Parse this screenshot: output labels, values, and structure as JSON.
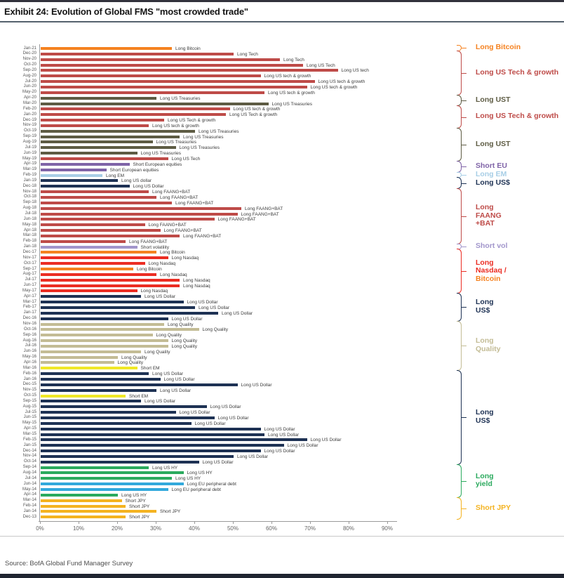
{
  "title": "Exhibit 24: Evolution of Global FMS \"most crowded trade\"",
  "source": "Source: BofA Global Fund Manager Survey",
  "colors": {
    "orange": "#F58220",
    "dark_red": "#BE4B48",
    "olive": "#5E5C44",
    "bright_red": "#EB2D23",
    "purple": "#7F63A7",
    "light_purple": "#A195CB",
    "light_blue": "#A7CEE6",
    "navy": "#1E3254",
    "tan": "#C3BC95",
    "yellow": "#F0E827",
    "green": "#2BAA5E",
    "cyan": "#33A9DC",
    "gold": "#F4B321"
  },
  "chart_data": {
    "type": "bar",
    "orientation": "horizontal",
    "title": "Exhibit 24: Evolution of Global FMS \"most crowded trade\"",
    "xlabel": "",
    "ylabel": "",
    "xlim": [
      0,
      90
    ],
    "grid": false,
    "legend_position": "right",
    "x_ticks": [
      "0%",
      "10%",
      "20%",
      "30%",
      "40%",
      "50%",
      "60%",
      "70%",
      "80%",
      "90%"
    ],
    "rows": [
      {
        "date": "Jan-21",
        "label": "Long Bitcoin",
        "value": 34,
        "color": "orange"
      },
      {
        "date": "Dec-20",
        "label": "Long Tech",
        "value": 50,
        "color": "dark_red"
      },
      {
        "date": "Nov-20",
        "label": "Long Tech",
        "value": 62,
        "color": "dark_red"
      },
      {
        "date": "Oct-20",
        "label": "Long US Tech",
        "value": 68,
        "color": "dark_red"
      },
      {
        "date": "Sep-20",
        "label": "Long US tech",
        "value": 77,
        "color": "dark_red"
      },
      {
        "date": "Aug-20",
        "label": "Long US tech & growth",
        "value": 57,
        "color": "dark_red"
      },
      {
        "date": "Jul-20",
        "label": "Long US tech & growth",
        "value": 71,
        "color": "dark_red"
      },
      {
        "date": "Jun-20",
        "label": "Long US tech & growth",
        "value": 69,
        "color": "dark_red"
      },
      {
        "date": "May-20",
        "label": "Long US tech & growth",
        "value": 58,
        "color": "dark_red"
      },
      {
        "date": "Apr-20",
        "label": "Long US Treasuries",
        "value": 30,
        "color": "olive"
      },
      {
        "date": "Mar-20",
        "label": "Long US Treasuries",
        "value": 59,
        "color": "olive"
      },
      {
        "date": "Feb-20",
        "label": "Long US tech & growth",
        "value": 49,
        "color": "dark_red"
      },
      {
        "date": "Jan-20",
        "label": "Long US Tech & growth",
        "value": 48,
        "color": "dark_red"
      },
      {
        "date": "Dec-19",
        "label": "Long US Tech & growth",
        "value": 32,
        "color": "dark_red"
      },
      {
        "date": "Nov-19",
        "label": "Long US tech & growth",
        "value": 28,
        "color": "dark_red"
      },
      {
        "date": "Oct-19",
        "label": "Long US Treasuries",
        "value": 40,
        "color": "olive"
      },
      {
        "date": "Sep-19",
        "label": "Long US Treasuries",
        "value": 36,
        "color": "olive"
      },
      {
        "date": "Aug-19",
        "label": "Long US Treasuries",
        "value": 29,
        "color": "olive"
      },
      {
        "date": "Jul-19",
        "label": "Long US Treasuries",
        "value": 35,
        "color": "olive"
      },
      {
        "date": "Jun-19",
        "label": "Long US Treasuries",
        "value": 25,
        "color": "olive"
      },
      {
        "date": "May-19",
        "label": "Long US Tech",
        "value": 33,
        "color": "dark_red"
      },
      {
        "date": "Apr-19",
        "label": "Short European equities",
        "value": 23,
        "color": "purple"
      },
      {
        "date": "Mar-19",
        "label": "Short European equities",
        "value": 17,
        "color": "purple"
      },
      {
        "date": "Feb-19",
        "label": "Long EM",
        "value": 16,
        "color": "light_blue"
      },
      {
        "date": "Jan-19",
        "label": "Long US dollar",
        "value": 20,
        "color": "navy"
      },
      {
        "date": "Dec-18",
        "label": "Long US Dollar",
        "value": 23,
        "color": "navy"
      },
      {
        "date": "Nov-18",
        "label": "Long FAANG+BAT",
        "value": 28,
        "color": "dark_red"
      },
      {
        "date": "Oct-18",
        "label": "Long FAANG+BAT",
        "value": 30,
        "color": "dark_red"
      },
      {
        "date": "Sep-18",
        "label": "Long FAANG+BAT",
        "value": 34,
        "color": "dark_red"
      },
      {
        "date": "Aug-18",
        "label": "Long FAANG+BAT",
        "value": 52,
        "color": "dark_red"
      },
      {
        "date": "Jul-18",
        "label": "Long FAANG+BAT",
        "value": 51,
        "color": "dark_red"
      },
      {
        "date": "Jun-18",
        "label": "Long FAANG+BAT",
        "value": 45,
        "color": "dark_red"
      },
      {
        "date": "May-18",
        "label": "Long FAANG+BAT",
        "value": 27,
        "color": "dark_red"
      },
      {
        "date": "Apr-18",
        "label": "Long FAANG+BAT",
        "value": 31,
        "color": "dark_red"
      },
      {
        "date": "Mar-18",
        "label": "Long FAANG+BAT",
        "value": 36,
        "color": "dark_red"
      },
      {
        "date": "Feb-18",
        "label": "Long FAANG+BAT",
        "value": 22,
        "color": "dark_red"
      },
      {
        "date": "Jan-18",
        "label": "Short volatility",
        "value": 25,
        "color": "light_purple"
      },
      {
        "date": "Dec-17",
        "label": "Long Bitcoin",
        "value": 30,
        "color": "orange"
      },
      {
        "date": "Nov-17",
        "label": "Long Nasdaq",
        "value": 33,
        "color": "bright_red"
      },
      {
        "date": "Oct-17",
        "label": "Long Nasdaq",
        "value": 27,
        "color": "bright_red"
      },
      {
        "date": "Sep-17",
        "label": "Long Bitcoin",
        "value": 24,
        "color": "orange"
      },
      {
        "date": "Aug-17",
        "label": "Long Nasdaq",
        "value": 30,
        "color": "bright_red"
      },
      {
        "date": "Jul-17",
        "label": "Long Nasdaq",
        "value": 36,
        "color": "bright_red"
      },
      {
        "date": "Jun-17",
        "label": "Long Nasdaq",
        "value": 36,
        "color": "bright_red"
      },
      {
        "date": "May-17",
        "label": "Long Nasdaq",
        "value": 25,
        "color": "bright_red"
      },
      {
        "date": "Apr-17",
        "label": "Long US Dollar",
        "value": 26,
        "color": "navy"
      },
      {
        "date": "Mar-17",
        "label": "Long US Dollar",
        "value": 37,
        "color": "navy"
      },
      {
        "date": "Feb-17",
        "label": "Long US Dollar",
        "value": 40,
        "color": "navy"
      },
      {
        "date": "Jan-17",
        "label": "Long US Dollar",
        "value": 46,
        "color": "navy"
      },
      {
        "date": "Dec-16",
        "label": "Long US Dollar",
        "value": 33,
        "color": "navy"
      },
      {
        "date": "Nov-16",
        "label": "Long Quality",
        "value": 32,
        "color": "tan"
      },
      {
        "date": "Oct-16",
        "label": "Long Quality",
        "value": 41,
        "color": "tan"
      },
      {
        "date": "Sep-16",
        "label": "Long Quality",
        "value": 29,
        "color": "tan"
      },
      {
        "date": "Aug-16",
        "label": "Long Quality",
        "value": 33,
        "color": "tan"
      },
      {
        "date": "Jul-16",
        "label": "Long Quality",
        "value": 33,
        "color": "tan"
      },
      {
        "date": "Jun-16",
        "label": "Long Quality",
        "value": 26,
        "color": "tan"
      },
      {
        "date": "May-16",
        "label": "Long Quality",
        "value": 20,
        "color": "tan"
      },
      {
        "date": "Apr-16",
        "label": "Long Quality",
        "value": 19,
        "color": "tan"
      },
      {
        "date": "Mar-16",
        "label": "Short EM",
        "value": 25,
        "color": "yellow"
      },
      {
        "date": "Feb-16",
        "label": "Long US Dollar",
        "value": 28,
        "color": "navy"
      },
      {
        "date": "Jan-16",
        "label": "Long US Dollar",
        "value": 31,
        "color": "navy"
      },
      {
        "date": "Dec-15",
        "label": "Long US Dollar",
        "value": 51,
        "color": "navy"
      },
      {
        "date": "Nov-15",
        "label": "Long US Dollar",
        "value": 30,
        "color": "navy"
      },
      {
        "date": "Oct-15",
        "label": "Short EM",
        "value": 22,
        "color": "yellow"
      },
      {
        "date": "Sep-15",
        "label": "Long US Dollar",
        "value": 26,
        "color": "navy"
      },
      {
        "date": "Aug-15",
        "label": "Long US Dollar",
        "value": 43,
        "color": "navy"
      },
      {
        "date": "Jul-15",
        "label": "Long US Dollar",
        "value": 35,
        "color": "navy"
      },
      {
        "date": "Jun-15",
        "label": "Long US Dollar",
        "value": 45,
        "color": "navy"
      },
      {
        "date": "May-15",
        "label": "Long US Dollar",
        "value": 39,
        "color": "navy"
      },
      {
        "date": "Apr-15",
        "label": "Long US Dollar",
        "value": 57,
        "color": "navy"
      },
      {
        "date": "Mar-15",
        "label": "Long US Dollar",
        "value": 58,
        "color": "navy"
      },
      {
        "date": "Feb-15",
        "label": "Long US Dollar",
        "value": 69,
        "color": "navy"
      },
      {
        "date": "Jan-15",
        "label": "Long US Dollar",
        "value": 63,
        "color": "navy"
      },
      {
        "date": "Dec-14",
        "label": "Long US Dollar",
        "value": 57,
        "color": "navy"
      },
      {
        "date": "Nov-14",
        "label": "Long US Dollar",
        "value": 50,
        "color": "navy"
      },
      {
        "date": "Oct-14",
        "label": "Long US Dollar",
        "value": 41,
        "color": "navy"
      },
      {
        "date": "Sep-14",
        "label": "Long US HY",
        "value": 28,
        "color": "green"
      },
      {
        "date": "Aug-14",
        "label": "Long US HY",
        "value": 37,
        "color": "green"
      },
      {
        "date": "Jul-14",
        "label": "Long US HY",
        "value": 34,
        "color": "green"
      },
      {
        "date": "Jun-14",
        "label": "Long EU peripheral debt",
        "value": 37,
        "color": "cyan"
      },
      {
        "date": "May-14",
        "label": "Long EU peripheral debt",
        "value": 33,
        "color": "cyan"
      },
      {
        "date": "Apr-14",
        "label": "Long US HY",
        "value": 20,
        "color": "green"
      },
      {
        "date": "Mar-14",
        "label": "Short JPY",
        "value": 21,
        "color": "gold"
      },
      {
        "date": "Feb-14",
        "label": "Short JPY",
        "value": 22,
        "color": "gold"
      },
      {
        "date": "Jan-14",
        "label": "Short JPY",
        "value": 30,
        "color": "gold"
      },
      {
        "date": "Dec-13",
        "label": "Short JPY",
        "value": 22,
        "color": "gold"
      }
    ],
    "legend": [
      {
        "from": 1,
        "to": 1,
        "bracket": "orange",
        "lines": [
          {
            "text": "Long Bitcoin",
            "color": "orange"
          }
        ]
      },
      {
        "from": 2,
        "to": 9,
        "bracket": "dark_red",
        "lines": [
          {
            "text": "Long US Tech & growth",
            "color": "dark_red"
          }
        ]
      },
      {
        "from": 10,
        "to": 11,
        "bracket": "olive",
        "lines": [
          {
            "text": "Long UST",
            "color": "olive"
          }
        ]
      },
      {
        "from": 12,
        "to": 15,
        "bracket": "dark_red",
        "lines": [
          {
            "text": "Long US Tech & growth",
            "color": "dark_red"
          }
        ]
      },
      {
        "from": 16,
        "to": 21,
        "bracket": "olive",
        "lines": [
          {
            "text": "Long UST",
            "color": "olive"
          }
        ]
      },
      {
        "from": 22,
        "to": 23,
        "bracket": "purple",
        "lines": [
          {
            "text": "Short EU",
            "color": "purple"
          }
        ]
      },
      {
        "from": 24,
        "to": 24,
        "bracket": "light_blue",
        "lines": [
          {
            "text": "Long EM",
            "color": "light_blue"
          }
        ]
      },
      {
        "from": 25,
        "to": 26,
        "bracket": "navy",
        "lines": [
          {
            "text": "Long US$",
            "color": "navy"
          }
        ]
      },
      {
        "from": 27,
        "to": 36,
        "bracket": "dark_red",
        "lines": [
          {
            "text": "Long",
            "color": "dark_red"
          },
          {
            "text": "FAANG",
            "color": "dark_red"
          },
          {
            "text": "+BAT",
            "color": "dark_red"
          }
        ]
      },
      {
        "from": 37,
        "to": 37,
        "bracket": "light_purple",
        "lines": [
          {
            "text": "Short vol",
            "color": "light_purple"
          }
        ]
      },
      {
        "from": 38,
        "to": 45,
        "bracket": "bright_red",
        "lines": [
          {
            "text": "Long",
            "color": "bright_red"
          },
          {
            "text": "Nasdaq /",
            "color": "bright_red"
          },
          {
            "text": "Bitcoin",
            "color": "orange"
          }
        ]
      },
      {
        "from": 46,
        "to": 50,
        "bracket": "navy",
        "lines": [
          {
            "text": "Long",
            "color": "navy"
          },
          {
            "text": "US$",
            "color": "navy"
          }
        ]
      },
      {
        "from": 51,
        "to": 59,
        "bracket": "tan",
        "lines": [
          {
            "text": "Long",
            "color": "tan"
          },
          {
            "text": "Quality",
            "color": "tan"
          }
        ]
      },
      {
        "from": 60,
        "to": 76,
        "bracket": "navy",
        "lines": [
          {
            "text": "Long",
            "color": "navy"
          },
          {
            "text": "US$",
            "color": "navy"
          }
        ]
      },
      {
        "from": 77,
        "to": 82,
        "bracket": "green",
        "lines": [
          {
            "text": "Long",
            "color": "green"
          },
          {
            "text": "yield",
            "color": "green"
          }
        ]
      },
      {
        "from": 83,
        "to": 86,
        "bracket": "gold",
        "lines": [
          {
            "text": "Short JPY",
            "color": "gold"
          }
        ]
      }
    ]
  }
}
